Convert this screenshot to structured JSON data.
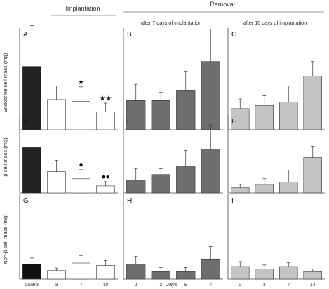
{
  "figure": {
    "header_implantation": "Implantation",
    "header_removal": "Removal",
    "sub_7": "after 7 days of implantation",
    "sub_10": "after 10 days of implantation",
    "x_axis_label": "Days",
    "row_labels": [
      "Endocrine cell mass (mg)",
      "β cell mass (mg)",
      "Non-β cell mass (mg)"
    ]
  },
  "chart_data": [
    {
      "type": "bar",
      "panel": "A",
      "ylabel": "Endocrine cell mass (mg)",
      "categories": [
        "Control",
        "3",
        "7",
        "10"
      ],
      "values": [
        1.95,
        0.93,
        0.87,
        0.55
      ],
      "errors": [
        1.25,
        0.42,
        0.45,
        0.27
      ],
      "colors": [
        "#222222",
        "#ffffff",
        "#ffffff",
        "#ffffff"
      ],
      "annotations": [
        "",
        "",
        "★",
        "★★"
      ]
    },
    {
      "type": "bar",
      "panel": "B",
      "ylabel": "",
      "categories": [
        "2",
        "3",
        "5",
        "7"
      ],
      "values": [
        0.9,
        0.9,
        1.2,
        2.1
      ],
      "errors": [
        0.5,
        0.25,
        0.6,
        1.0
      ],
      "colors": [
        "#6e6e6e",
        "#6e6e6e",
        "#6e6e6e",
        "#6e6e6e"
      ]
    },
    {
      "type": "bar",
      "panel": "C",
      "ylabel": "",
      "categories": [
        "2",
        "3",
        "7",
        "14"
      ],
      "values": [
        0.65,
        0.75,
        0.85,
        1.65
      ],
      "errors": [
        0.3,
        0.3,
        0.5,
        0.45
      ],
      "colors": [
        "#c4c4c4",
        "#c4c4c4",
        "#c4c4c4",
        "#c4c4c4"
      ]
    },
    {
      "type": "bar",
      "panel": "D",
      "ylabel": "β cell mass (mg)",
      "categories": [
        "Control",
        "3",
        "7",
        "10"
      ],
      "values": [
        1.6,
        0.75,
        0.5,
        0.25
      ],
      "errors": [
        1.1,
        0.4,
        0.32,
        0.15
      ],
      "colors": [
        "#222222",
        "#ffffff",
        "#ffffff",
        "#ffffff"
      ],
      "annotations": [
        "",
        "",
        "●",
        "●●"
      ]
    },
    {
      "type": "bar",
      "panel": "E",
      "ylabel": "",
      "categories": [
        "2",
        "3",
        "5",
        "7"
      ],
      "values": [
        0.45,
        0.65,
        0.95,
        1.55
      ],
      "errors": [
        0.4,
        0.2,
        0.55,
        0.85
      ],
      "colors": [
        "#6e6e6e",
        "#6e6e6e",
        "#6e6e6e",
        "#6e6e6e"
      ]
    },
    {
      "type": "bar",
      "panel": "F",
      "ylabel": "",
      "categories": [
        "2",
        "3",
        "7",
        "14"
      ],
      "values": [
        0.18,
        0.3,
        0.38,
        1.25
      ],
      "errors": [
        0.12,
        0.2,
        0.42,
        0.4
      ],
      "colors": [
        "#c4c4c4",
        "#c4c4c4",
        "#c4c4c4",
        "#c4c4c4"
      ]
    },
    {
      "type": "bar",
      "panel": "G",
      "ylabel": "Non-β cell mass (mg)",
      "categories": [
        "Control",
        "3",
        "7",
        "10"
      ],
      "values": [
        0.3,
        0.17,
        0.32,
        0.27
      ],
      "errors": [
        0.12,
        0.05,
        0.15,
        0.1
      ],
      "colors": [
        "#111111",
        "#ffffff",
        "#ffffff",
        "#ffffff"
      ]
    },
    {
      "type": "bar",
      "panel": "H",
      "ylabel": "",
      "categories": [
        "2",
        "3",
        "5",
        "7"
      ],
      "values": [
        0.3,
        0.15,
        0.15,
        0.4
      ],
      "errors": [
        0.15,
        0.08,
        0.08,
        0.25
      ],
      "colors": [
        "#6e6e6e",
        "#6e6e6e",
        "#6e6e6e",
        "#6e6e6e"
      ]
    },
    {
      "type": "bar",
      "panel": "I",
      "ylabel": "",
      "categories": [
        "2",
        "3",
        "7",
        "14"
      ],
      "values": [
        0.25,
        0.2,
        0.25,
        0.15
      ],
      "errors": [
        0.1,
        0.08,
        0.08,
        0.05
      ],
      "colors": [
        "#c4c4c4",
        "#c4c4c4",
        "#c4c4c4",
        "#c4c4c4"
      ]
    }
  ]
}
